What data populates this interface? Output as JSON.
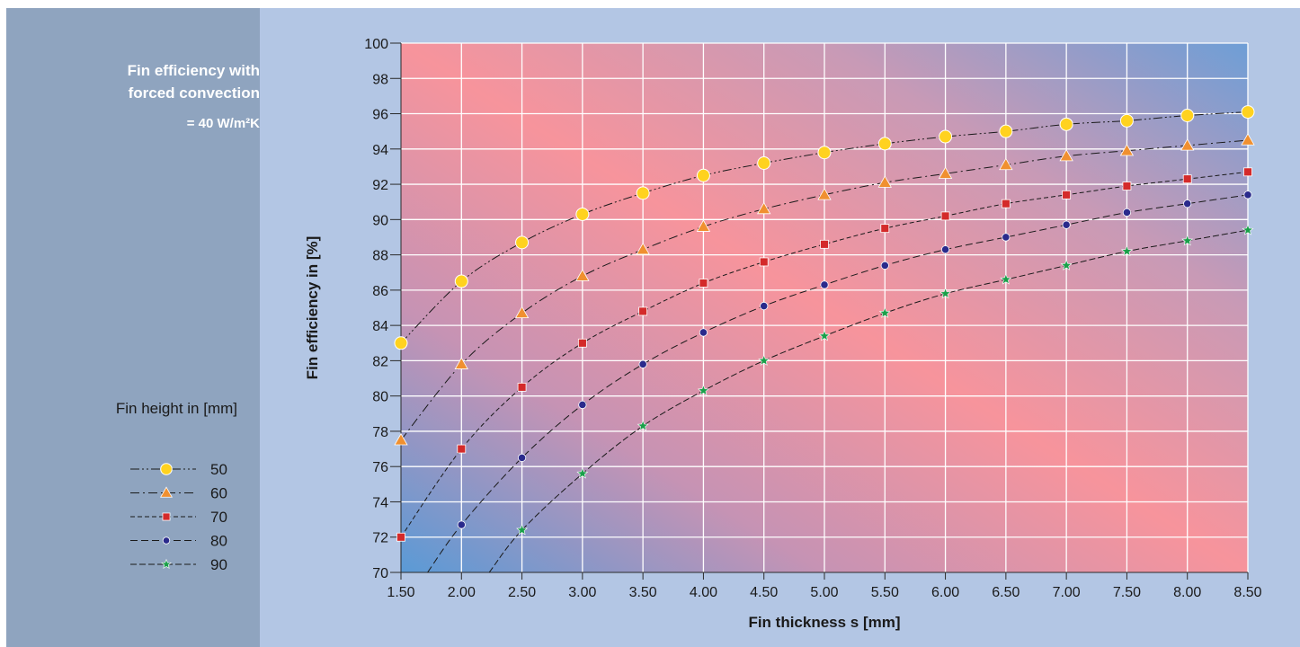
{
  "sidebar": {
    "title_line1": "Fin efficiency with",
    "title_line2": "forced convection",
    "coefficient": "= 40 W/m²K",
    "legend_title": "Fin height in [mm]"
  },
  "colors": {
    "sidebar": "#8fa4bf",
    "frame": "#b3c6e4",
    "plot_gradient": [
      "#5a9ad6",
      "#f7949c",
      "#6e9ed6"
    ]
  },
  "chart_data": {
    "type": "line",
    "xlabel": "Fin thickness  s [mm]",
    "ylabel": "Fin efficiency in [%]",
    "xlim": [
      1.5,
      8.5
    ],
    "ylim": [
      70,
      100
    ],
    "x_ticks": [
      "1.50",
      "2.00",
      "2.50",
      "3.00",
      "3.50",
      "4.00",
      "4.50",
      "5.00",
      "5.50",
      "6.00",
      "6.50",
      "7.00",
      "7.50",
      "8.00",
      "8.50"
    ],
    "y_ticks": [
      "70",
      "72",
      "74",
      "76",
      "78",
      "80",
      "82",
      "84",
      "86",
      "88",
      "90",
      "92",
      "94",
      "96",
      "98",
      "100"
    ],
    "grid": true,
    "x": [
      1.5,
      2.0,
      2.5,
      3.0,
      3.5,
      4.0,
      4.5,
      5.0,
      5.5,
      6.0,
      6.5,
      7.0,
      7.5,
      8.0,
      8.5
    ],
    "series": [
      {
        "name": "50",
        "color": "#ffd21f",
        "marker": "circle",
        "dash": "10,3,2,3,2,3",
        "values": [
          83.0,
          86.5,
          88.7,
          90.3,
          91.5,
          92.5,
          93.2,
          93.8,
          94.3,
          94.7,
          95.0,
          95.4,
          95.6,
          95.9,
          96.1
        ]
      },
      {
        "name": "60",
        "color": "#f09030",
        "marker": "triangle",
        "dash": "10,4,2,4",
        "values": [
          77.5,
          81.8,
          84.7,
          86.8,
          88.3,
          89.6,
          90.6,
          91.4,
          92.1,
          92.6,
          93.1,
          93.6,
          93.9,
          94.2,
          94.5
        ]
      },
      {
        "name": "70",
        "color": "#d42a2a",
        "marker": "square",
        "dash": "5,3",
        "values": [
          72.0,
          77.0,
          80.5,
          83.0,
          84.8,
          86.4,
          87.6,
          88.6,
          89.5,
          90.2,
          90.9,
          91.4,
          91.9,
          92.3,
          92.7
        ]
      },
      {
        "name": "80",
        "color": "#2a2a8c",
        "marker": "circle-small",
        "dash": "8,4",
        "values": [
          null,
          72.7,
          76.5,
          79.5,
          81.8,
          83.6,
          85.1,
          86.3,
          87.4,
          88.3,
          89.0,
          89.7,
          90.4,
          90.9,
          91.4
        ]
      },
      {
        "name": "90",
        "color": "#1aa04a",
        "marker": "star",
        "dash": "7,3",
        "values": [
          null,
          null,
          72.4,
          75.6,
          78.3,
          80.3,
          82.0,
          83.4,
          84.7,
          85.8,
          86.6,
          87.4,
          88.2,
          88.8,
          89.4
        ]
      }
    ],
    "extensions": [
      {
        "series": "50",
        "x": 1.5,
        "y": 83.0
      },
      {
        "series": "60",
        "x": 1.5,
        "y": 77.5
      },
      {
        "series": "70",
        "x": 1.5,
        "y": 72.0
      },
      {
        "series": "80",
        "x": 1.72,
        "y": 70.0
      },
      {
        "series": "90",
        "x": 2.23,
        "y": 70.0
      }
    ],
    "legend": {
      "placement": "left-sidebar",
      "entries": [
        "50",
        "60",
        "70",
        "80",
        "90"
      ]
    }
  }
}
